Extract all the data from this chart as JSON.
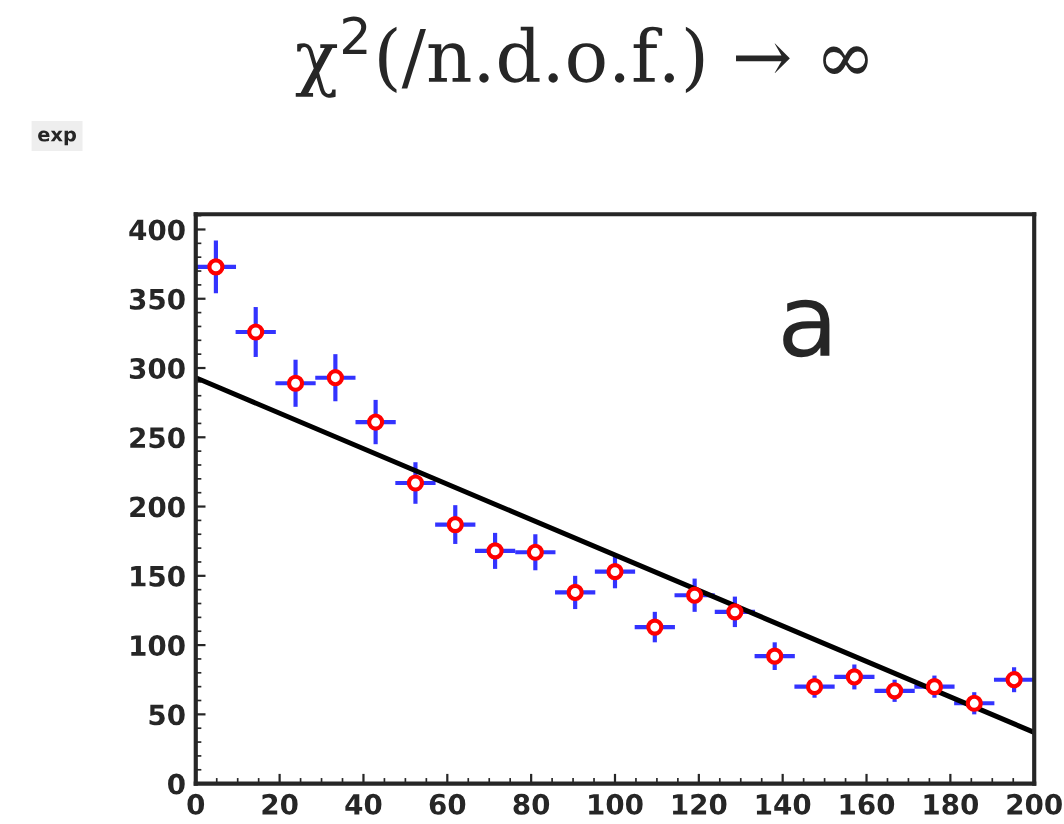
{
  "chart_data": {
    "type": "scatter",
    "title": "χ$^{2}$(/n.d.o.f.) → ∞",
    "annotations": [
      "exp",
      "a"
    ],
    "x": [
      4.8,
      14.3,
      23.8,
      33.3,
      42.9,
      52.4,
      61.9,
      71.4,
      81,
      90.5,
      100,
      109.5,
      119,
      128.6,
      138.1,
      147.6,
      157.1,
      166.7,
      176.2,
      185.7,
      195.2
    ],
    "series": [
      {
        "color": "#ff0000",
        "marker": "circle",
        "values": [
          373,
          326,
          289,
          293,
          261,
          217,
          187,
          168,
          167,
          138,
          153,
          113,
          136,
          124,
          92,
          70,
          77,
          67,
          70,
          58,
          75
        ],
        "errors": [
          19,
          18,
          17,
          17,
          16,
          15,
          14,
          13,
          13,
          12,
          12,
          11,
          12,
          11,
          10,
          8,
          9,
          8,
          8,
          8,
          9
        ],
        "xerrors": [
          4.8,
          4.8,
          4.8,
          4.8,
          4.8,
          4.8,
          4.8,
          4.8,
          4.8,
          4.8,
          4.8,
          4.8,
          4.8,
          4.8,
          4.8,
          4.8,
          4.8,
          4.8,
          4.8,
          4.8,
          4.8
        ]
      },
      {
        "type": "line",
        "color": "#000000",
        "x": [
          0,
          200
        ],
        "values": [
          293,
          37
        ]
      }
    ],
    "xlim": [
      0,
      200
    ],
    "ylim": [
      0,
      411
    ],
    "xticks": [
      0,
      20,
      40,
      60,
      80,
      100,
      120,
      140,
      160,
      180,
      200
    ],
    "yticks": [
      0,
      50,
      100,
      150,
      200,
      250,
      300,
      350,
      400
    ],
    "grid": false,
    "legend": false
  }
}
